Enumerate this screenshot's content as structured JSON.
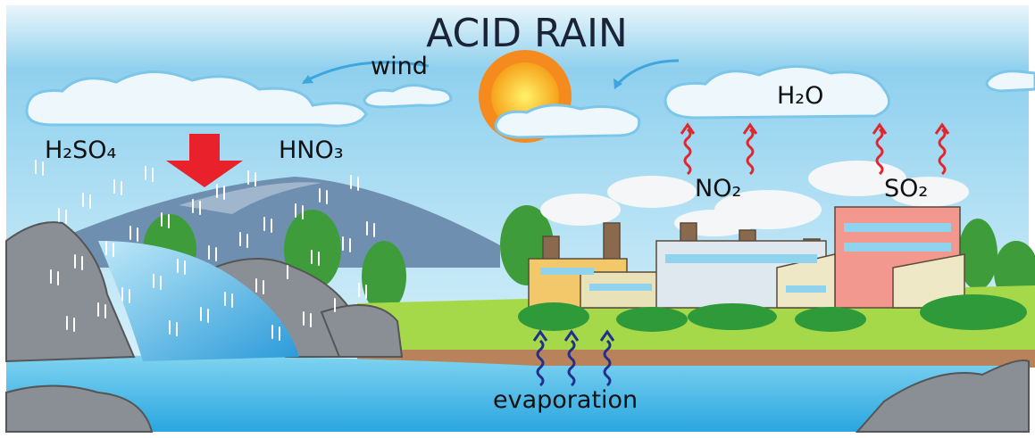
{
  "title": "ACID RAIN",
  "labels": [
    "wind",
    "H₂O",
    "H₂SO₄",
    "HNO₃",
    "NO₂",
    "SO₂",
    "evaporation"
  ]
}
